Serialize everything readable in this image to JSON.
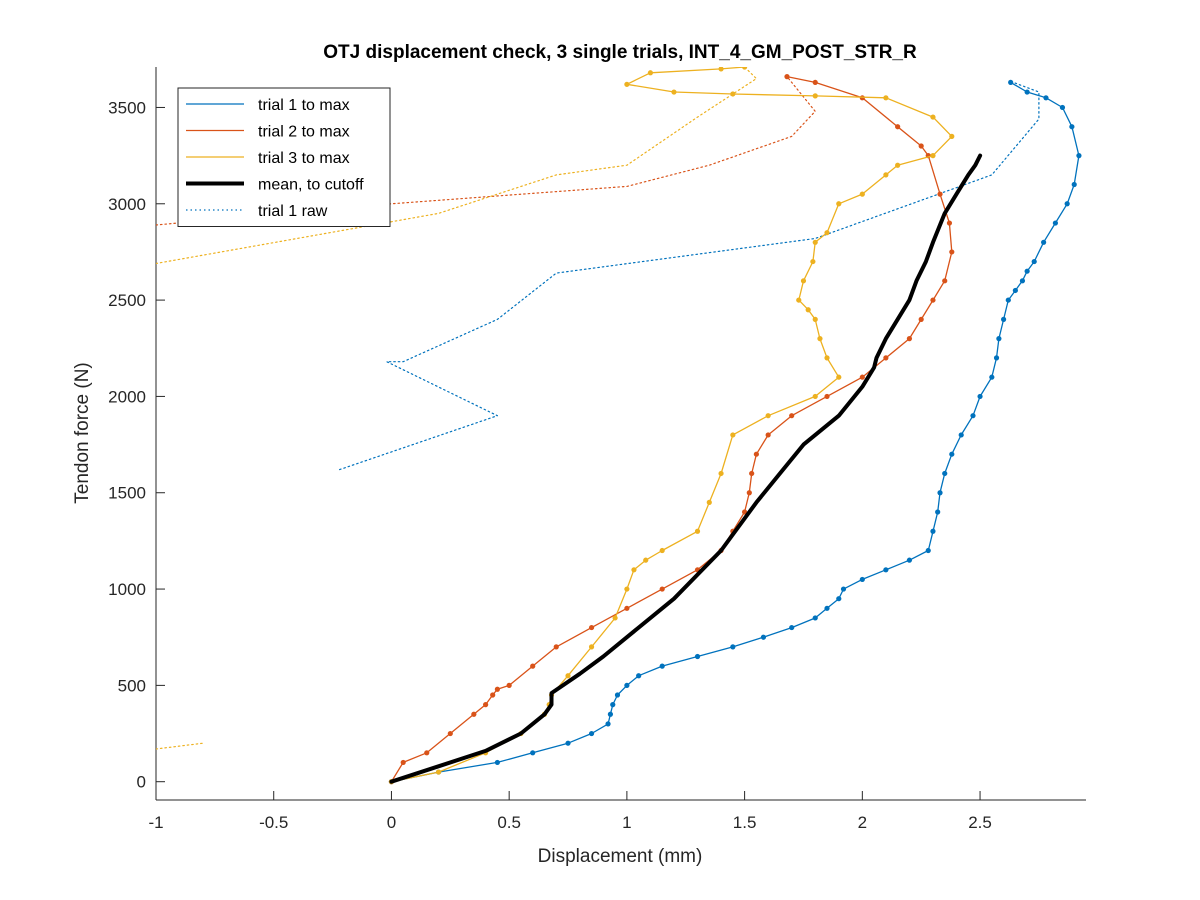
{
  "chart_data": {
    "type": "line",
    "title": "OTJ displacement check, 3 single trials, INT_4_GM_POST_STR_R",
    "xlabel": "Displacement (mm)",
    "ylabel": "Tendon force (N)",
    "xlim": [
      -1,
      2.95
    ],
    "ylim": [
      -95,
      3710
    ],
    "xticks": [
      -1,
      -0.5,
      0,
      0.5,
      1,
      1.5,
      2,
      2.5
    ],
    "xtick_labels": [
      "-1",
      "-0.5",
      "0",
      "0.5",
      "1",
      "1.5",
      "2",
      "2.5"
    ],
    "yticks": [
      0,
      500,
      1000,
      1500,
      2000,
      2500,
      3000,
      3500
    ],
    "ytick_labels": [
      "0",
      "500",
      "1000",
      "1500",
      "2000",
      "2500",
      "3000",
      "3500"
    ],
    "grid": false,
    "legend_position": "top-left",
    "legend": [
      "trial 1 to max",
      "trial 2 to max",
      "trial 3 to max",
      "mean, to cutoff",
      "trial 1 raw"
    ],
    "colors": {
      "trial1": "#0072BD",
      "trial2": "#D95319",
      "trial3": "#EDB120",
      "mean": "#000000"
    },
    "series": [
      {
        "name": "trial 1 to max",
        "color": "#0072BD",
        "style": "solid",
        "x": [
          0,
          0.2,
          0.45,
          0.6,
          0.75,
          0.85,
          0.92,
          0.93,
          0.94,
          0.96,
          1.0,
          1.05,
          1.15,
          1.3,
          1.45,
          1.58,
          1.7,
          1.8,
          1.85,
          1.9,
          1.92,
          2.0,
          2.1,
          2.2,
          2.28,
          2.3,
          2.32,
          2.33,
          2.35,
          2.38,
          2.42,
          2.47,
          2.5,
          2.55,
          2.57,
          2.58,
          2.6,
          2.62,
          2.65,
          2.68,
          2.7,
          2.73,
          2.77,
          2.82,
          2.87,
          2.9,
          2.92,
          2.89,
          2.85,
          2.78,
          2.7,
          2.63
        ],
        "y": [
          0,
          50,
          100,
          150,
          200,
          250,
          300,
          350,
          400,
          450,
          500,
          550,
          600,
          650,
          700,
          750,
          800,
          850,
          900,
          950,
          1000,
          1050,
          1100,
          1150,
          1200,
          1300,
          1400,
          1500,
          1600,
          1700,
          1800,
          1900,
          2000,
          2100,
          2200,
          2300,
          2400,
          2500,
          2550,
          2600,
          2650,
          2700,
          2800,
          2900,
          3000,
          3100,
          3250,
          3400,
          3500,
          3550,
          3580,
          3630
        ]
      },
      {
        "name": "trial 2 to max",
        "color": "#D95319",
        "style": "solid",
        "x": [
          0,
          0.05,
          0.15,
          0.25,
          0.35,
          0.4,
          0.43,
          0.45,
          0.5,
          0.6,
          0.7,
          0.85,
          1.0,
          1.15,
          1.3,
          1.4,
          1.45,
          1.5,
          1.52,
          1.53,
          1.55,
          1.6,
          1.7,
          1.85,
          2.0,
          2.1,
          2.2,
          2.25,
          2.3,
          2.35,
          2.38,
          2.37,
          2.33,
          2.28,
          2.25,
          2.15,
          2.0,
          1.8,
          1.68
        ],
        "y": [
          0,
          100,
          150,
          250,
          350,
          400,
          450,
          480,
          500,
          600,
          700,
          800,
          900,
          1000,
          1100,
          1200,
          1300,
          1400,
          1500,
          1600,
          1700,
          1800,
          1900,
          2000,
          2100,
          2200,
          2300,
          2400,
          2500,
          2600,
          2750,
          2900,
          3050,
          3250,
          3300,
          3400,
          3550,
          3630,
          3660
        ]
      },
      {
        "name": "trial 3 to max",
        "color": "#EDB120",
        "style": "solid",
        "x": [
          0,
          0.2,
          0.4,
          0.55,
          0.65,
          0.67,
          0.68,
          0.75,
          0.85,
          0.95,
          1.0,
          1.03,
          1.08,
          1.15,
          1.3,
          1.35,
          1.4,
          1.45,
          1.6,
          1.8,
          1.9,
          1.85,
          1.82,
          1.8,
          1.77,
          1.73,
          1.75,
          1.79,
          1.8,
          1.85,
          1.9,
          2.0,
          2.1,
          2.15,
          2.3,
          2.38,
          2.3,
          2.1,
          1.8,
          1.45,
          1.2,
          1.0,
          1.1,
          1.4,
          1.5
        ],
        "y": [
          0,
          50,
          150,
          250,
          350,
          400,
          450,
          550,
          700,
          850,
          1000,
          1100,
          1150,
          1200,
          1300,
          1450,
          1600,
          1800,
          1900,
          2000,
          2100,
          2200,
          2300,
          2400,
          2450,
          2500,
          2600,
          2700,
          2800,
          2850,
          3000,
          3050,
          3150,
          3200,
          3250,
          3350,
          3450,
          3550,
          3560,
          3570,
          3580,
          3620,
          3680,
          3700,
          3710
        ]
      },
      {
        "name": "mean, to cutoff",
        "color": "#000000",
        "style": "thick",
        "x": [
          0,
          0.2,
          0.4,
          0.55,
          0.65,
          0.68,
          0.68,
          0.8,
          0.9,
          1.0,
          1.2,
          1.4,
          1.55,
          1.65,
          1.75,
          1.9,
          2.0,
          2.05,
          2.06,
          2.1,
          2.15,
          2.2,
          2.23,
          2.27,
          2.3,
          2.35,
          2.4,
          2.45,
          2.48,
          2.5
        ],
        "y": [
          0,
          80,
          160,
          250,
          350,
          400,
          460,
          560,
          650,
          750,
          950,
          1200,
          1450,
          1600,
          1750,
          1900,
          2050,
          2150,
          2200,
          2300,
          2400,
          2500,
          2600,
          2700,
          2800,
          2950,
          3050,
          3150,
          3200,
          3250
        ]
      },
      {
        "name": "trial 1 raw",
        "color": "#0072BD",
        "style": "dotted",
        "x": [
          -0.22,
          0.45,
          -0.02,
          0.05,
          0.45,
          0.7,
          1.8,
          2.55,
          2.75,
          2.75,
          2.62
        ],
        "y": [
          1620,
          1900,
          2180,
          2180,
          2400,
          2640,
          2820,
          3150,
          3440,
          3580,
          3640
        ]
      },
      {
        "name": "",
        "color": "#D95319",
        "style": "dotted",
        "x": [
          -1.0,
          0.0,
          1.0,
          1.35,
          1.7,
          1.8,
          1.68
        ],
        "y": [
          2890,
          3000,
          3090,
          3200,
          3350,
          3480,
          3660
        ]
      },
      {
        "name": "",
        "color": "#EDB120",
        "style": "dotted",
        "x": [
          -1.0,
          0.2,
          0.7,
          1.0,
          1.3,
          1.55,
          1.5
        ],
        "y": [
          2690,
          2950,
          3150,
          3200,
          3450,
          3650,
          3710
        ]
      },
      {
        "name": "",
        "color": "#EDB120",
        "style": "dotted",
        "x": [
          -1.0,
          -0.8
        ],
        "y": [
          170,
          200
        ]
      }
    ]
  }
}
